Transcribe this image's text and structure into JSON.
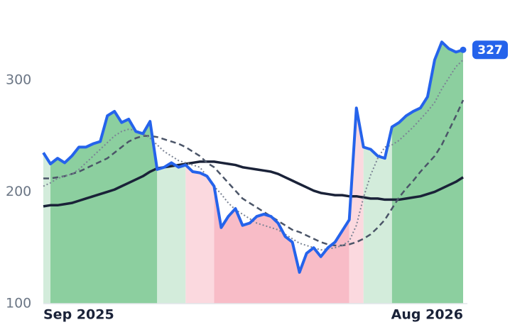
{
  "chart_data": {
    "type": "line",
    "categories": [
      "Sep 2025",
      null,
      null,
      null,
      null,
      null,
      null,
      null,
      null,
      null,
      null,
      null,
      null,
      null,
      null,
      null,
      null,
      null,
      null,
      null,
      null,
      null,
      null,
      null,
      null,
      null,
      null,
      null,
      null,
      null,
      null,
      null,
      null,
      null,
      null,
      null,
      null,
      null,
      null,
      null,
      null,
      null,
      null,
      null,
      null,
      null,
      null,
      null,
      null,
      null,
      null,
      null,
      null,
      null,
      null,
      null,
      null,
      null,
      null,
      "Aug 2026"
    ],
    "series": [
      {
        "color": "#2563eb",
        "style": "solid",
        "width": 4,
        "values": [
          235,
          225,
          230,
          226,
          232,
          240,
          240,
          243,
          245,
          268,
          272,
          262,
          265,
          254,
          252,
          263,
          220,
          222,
          226,
          222,
          224,
          218,
          217,
          214,
          205,
          168,
          178,
          185,
          170,
          172,
          178,
          180,
          178,
          172,
          160,
          155,
          128,
          145,
          150,
          142,
          150,
          155,
          165,
          175,
          275,
          240,
          238,
          232,
          230,
          258,
          262,
          268,
          272,
          275,
          285,
          318,
          334,
          328,
          325,
          327
        ]
      },
      {
        "color": "#7b8394",
        "style": "dotted",
        "width": 2,
        "values": [
          205,
          208,
          212,
          214,
          216,
          220,
          226,
          232,
          238,
          244,
          250,
          254,
          256,
          255,
          252,
          248,
          242,
          236,
          232,
          228,
          226,
          224,
          222,
          214,
          205,
          198,
          190,
          184,
          180,
          176,
          172,
          170,
          168,
          166,
          162,
          158,
          154,
          152,
          150,
          148,
          149,
          150,
          152,
          156,
          170,
          195,
          215,
          230,
          240,
          242,
          246,
          252,
          258,
          265,
          272,
          280,
          292,
          302,
          312,
          318
        ]
      },
      {
        "color": "#4b5568",
        "style": "dashed",
        "width": 2.5,
        "values": [
          212,
          212,
          213,
          214,
          216,
          218,
          221,
          224,
          227,
          230,
          235,
          240,
          245,
          248,
          250,
          250,
          249,
          247,
          245,
          243,
          240,
          236,
          232,
          226,
          222,
          215,
          208,
          201,
          194,
          190,
          186,
          182,
          178,
          174,
          170,
          166,
          164,
          161,
          158,
          155,
          153,
          152,
          152,
          153,
          155,
          158,
          162,
          168,
          175,
          185,
          195,
          203,
          210,
          218,
          225,
          232,
          242,
          255,
          268,
          282
        ]
      },
      {
        "color": "#1a2238",
        "style": "solid",
        "width": 3.5,
        "values": [
          187,
          188,
          188,
          189,
          190,
          192,
          194,
          196,
          198,
          200,
          202,
          205,
          208,
          211,
          214,
          218,
          221,
          222,
          223,
          224,
          225,
          226,
          227,
          227,
          227,
          226,
          225,
          224,
          222,
          221,
          220,
          219,
          218,
          216,
          213,
          210,
          207,
          204,
          201,
          199,
          198,
          197,
          197,
          196,
          196,
          195,
          194,
          194,
          193,
          193,
          193,
          194,
          195,
          196,
          198,
          200,
          203,
          206,
          209,
          213
        ]
      }
    ],
    "bands": [
      {
        "from": 0,
        "to": 1,
        "color": "#d3ecdb"
      },
      {
        "from": 1,
        "to": 16,
        "color": "#8ccf9f"
      },
      {
        "from": 16,
        "to": 20,
        "color": "#d3ecdb"
      },
      {
        "from": 20,
        "to": 24,
        "color": "#fbd9df"
      },
      {
        "from": 24,
        "to": 43,
        "color": "#f8bcc7"
      },
      {
        "from": 43,
        "to": 45,
        "color": "#fbd9df"
      },
      {
        "from": 45,
        "to": 49,
        "color": "#d3ecdb"
      },
      {
        "from": 49,
        "to": 59,
        "color": "#8ccf9f"
      }
    ],
    "badge_color": "#2563eb",
    "ylim": [
      100,
      350
    ],
    "yticks": [
      100,
      200,
      300
    ]
  }
}
